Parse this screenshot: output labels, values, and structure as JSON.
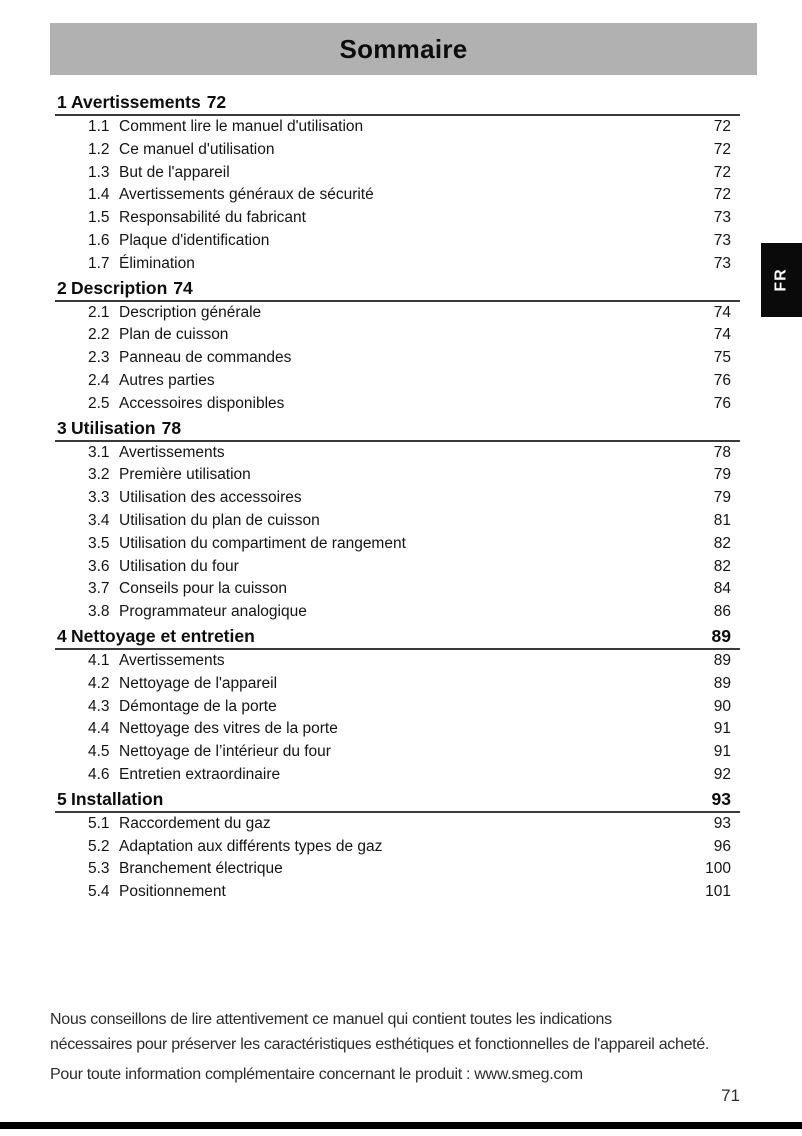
{
  "header": {
    "title": "Sommaire"
  },
  "language_tab": {
    "label": "FR"
  },
  "toc": {
    "sections": [
      {
        "number": "1",
        "title": "Avertissements",
        "page": "72",
        "page_inline": true,
        "items": [
          {
            "number": "1.1",
            "title": "Comment lire le manuel d'utilisation",
            "page": "72"
          },
          {
            "number": "1.2",
            "title": "Ce manuel d'utilisation",
            "page": "72"
          },
          {
            "number": "1.3",
            "title": "But de l'appareil",
            "page": "72"
          },
          {
            "number": "1.4",
            "title": "Avertissements généraux de sécurité",
            "page": "72"
          },
          {
            "number": "1.5",
            "title": "Responsabilité du fabricant",
            "page": "73"
          },
          {
            "number": "1.6",
            "title": "Plaque d'identification",
            "page": "73"
          },
          {
            "number": "1.7",
            "title": "Élimination",
            "page": "73"
          }
        ]
      },
      {
        "number": "2",
        "title": "Description",
        "page": "74",
        "page_inline": true,
        "items": [
          {
            "number": "2.1",
            "title": "Description générale",
            "page": "74"
          },
          {
            "number": "2.2",
            "title": "Plan de cuisson",
            "page": "74"
          },
          {
            "number": "2.3",
            "title": "Panneau de commandes",
            "page": "75"
          },
          {
            "number": "2.4",
            "title": "Autres parties",
            "page": "76"
          },
          {
            "number": "2.5",
            "title": "Accessoires disponibles",
            "page": "76"
          }
        ]
      },
      {
        "number": "3",
        "title": "Utilisation",
        "page": "78",
        "page_inline": true,
        "items": [
          {
            "number": "3.1",
            "title": "Avertissements",
            "page": "78"
          },
          {
            "number": "3.2",
            "title": "Première utilisation",
            "page": "79"
          },
          {
            "number": "3.3",
            "title": "Utilisation des accessoires",
            "page": "79"
          },
          {
            "number": "3.4",
            "title": "Utilisation du plan de cuisson",
            "page": "81"
          },
          {
            "number": "3.5",
            "title": "Utilisation du compartiment de rangement",
            "page": "82"
          },
          {
            "number": "3.6",
            "title": "Utilisation du four",
            "page": "82"
          },
          {
            "number": "3.7",
            "title": "Conseils pour la cuisson",
            "page": "84"
          },
          {
            "number": "3.8",
            "title": "Programmateur analogique",
            "page": "86"
          }
        ]
      },
      {
        "number": "4",
        "title": "Nettoyage et entretien",
        "page": "89",
        "page_inline": false,
        "items": [
          {
            "number": "4.1",
            "title": "Avertissements",
            "page": "89"
          },
          {
            "number": "4.2",
            "title": "Nettoyage de l'appareil",
            "page": "89"
          },
          {
            "number": "4.3",
            "title": "Démontage de la porte",
            "page": "90"
          },
          {
            "number": "4.4",
            "title": "Nettoyage des vitres de la porte",
            "page": "91"
          },
          {
            "number": "4.5",
            "title": "Nettoyage de l’intérieur du four",
            "page": "91"
          },
          {
            "number": "4.6",
            "title": "Entretien extraordinaire",
            "page": "92"
          }
        ]
      },
      {
        "number": "5",
        "title": "Installation",
        "page": "93",
        "page_inline": false,
        "items": [
          {
            "number": "5.1",
            "title": "Raccordement du gaz",
            "page": "93"
          },
          {
            "number": "5.2",
            "title": "Adaptation aux différents types de gaz",
            "page": "96"
          },
          {
            "number": "5.3",
            "title": "Branchement électrique",
            "page": "100"
          },
          {
            "number": "5.4",
            "title": "Positionnement",
            "page": "101"
          }
        ]
      }
    ]
  },
  "footer": {
    "paragraphs": [
      {
        "lines": [
          "Nous conseillons de lire attentivement ce manuel qui contient toutes les indications",
          "nécessaires pour préserver les caractéristiques esthétiques et fonctionnelles de l'appareil acheté."
        ]
      },
      {
        "lines": [
          "Pour toute information complémentaire concernant le produit : www.smeg.com"
        ]
      }
    ],
    "page_number": "71"
  },
  "colors": {
    "title_bar_bg": "#b1b1b1",
    "rule": "#3a3a3a",
    "language_tab_bg": "#0a0a0a",
    "language_tab_text": "#ffffff",
    "bottom_bar": "#000000"
  }
}
